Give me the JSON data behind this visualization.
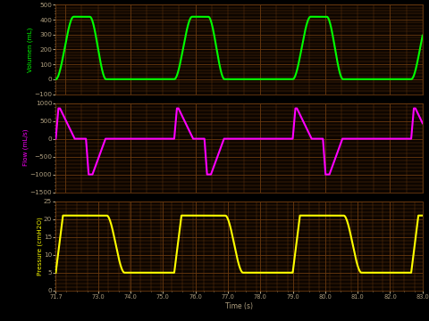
{
  "background_color": "#000000",
  "plot_bg_color": "#0d0500",
  "grid_color": "#6b3a0f",
  "xlabel": "Time (s)",
  "xlim": [
    71.7,
    83.0
  ],
  "xticks": [
    71.7,
    73.0,
    74.0,
    75.0,
    76.0,
    77.0,
    78.0,
    79.0,
    80.0,
    81.0,
    82.0,
    83.0
  ],
  "xtick_labels": [
    "71.7",
    "73.0",
    "74.0",
    "75.0",
    "76.0",
    "77.0",
    "78.0",
    "79.0",
    "80.0",
    "81.0",
    "82.0",
    "83.0"
  ],
  "panel1": {
    "ylabel": "Volumen (mL)",
    "ylim": [
      -100.0,
      500.0
    ],
    "yticks": [
      -100.0,
      0.0,
      100.0,
      200.0,
      300.0,
      400.0,
      500.0
    ],
    "color": "#00ff00",
    "linewidth": 1.5
  },
  "panel2": {
    "ylabel": "Flow (mL/s)",
    "ylim": [
      -1500.0,
      1000.0
    ],
    "yticks": [
      -1500.0,
      -1000.0,
      -500.0,
      0.0,
      500.0,
      1000.0
    ],
    "color": "#ff00ff",
    "linewidth": 1.5
  },
  "panel3": {
    "ylabel": "Pressure (cmH2O)",
    "ylim": [
      0.0,
      25.0
    ],
    "yticks": [
      0.0,
      5.0,
      10.0,
      15.0,
      20.0,
      25.0
    ],
    "color": "#ffff00",
    "linewidth": 1.5
  },
  "tick_color": "#b0a080",
  "period": 3.65,
  "t_start": 71.7,
  "t_end": 83.0
}
